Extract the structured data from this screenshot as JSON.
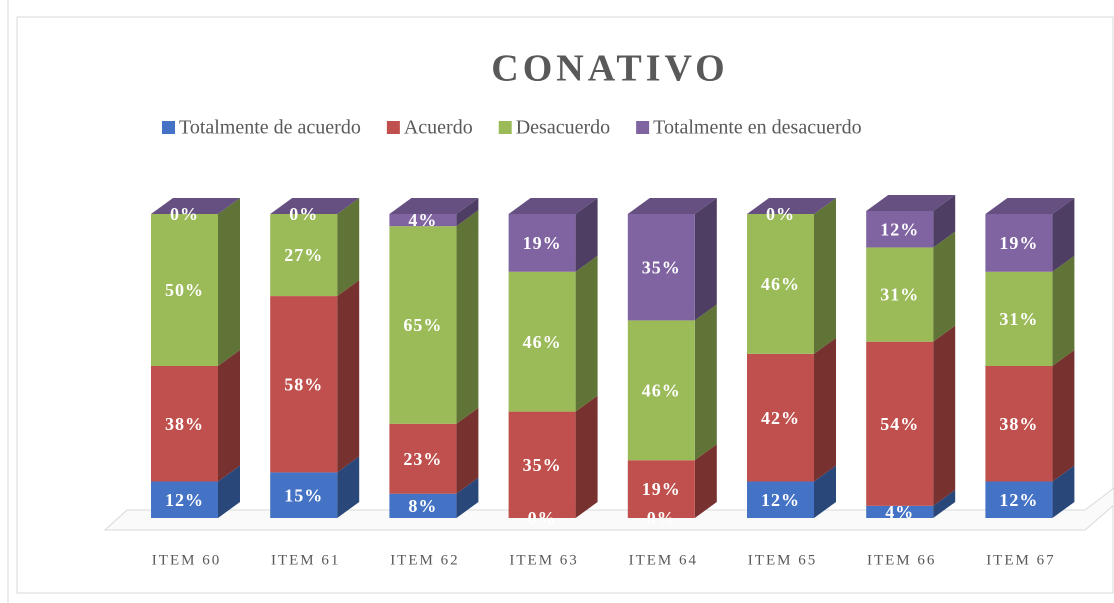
{
  "chart_data": {
    "type": "bar3d_stacked",
    "title": "CONATIVO",
    "categories": [
      "ITEM 60",
      "ITEM 61",
      "ITEM 62",
      "ITEM 63",
      "ITEM 64",
      "ITEM 65",
      "ITEM 66",
      "ITEM 67"
    ],
    "series": [
      {
        "name": "Totalmente de acuerdo",
        "color": "#4472c4",
        "values": [
          12,
          15,
          8,
          0,
          0,
          12,
          4,
          12
        ],
        "value_labels": [
          "12%",
          "15%",
          "8%",
          "0%",
          "0%",
          "12%",
          "4%",
          "12%"
        ]
      },
      {
        "name": "Acuerdo",
        "color": "#c0504d",
        "values": [
          38,
          58,
          23,
          35,
          19,
          42,
          54,
          38
        ],
        "value_labels": [
          "38%",
          "58%",
          "23%",
          "35%",
          "19%",
          "42%",
          "54%",
          "38%"
        ]
      },
      {
        "name": "Desacuerdo",
        "color": "#9bbb59",
        "values": [
          50,
          27,
          65,
          46,
          46,
          46,
          31,
          31
        ],
        "value_labels": [
          "50%",
          "27%",
          "65%",
          "46%",
          "46%",
          "46%",
          "31%",
          "31%"
        ]
      },
      {
        "name": "Totalmente en desacuerdo",
        "color": "#8064a2",
        "values": [
          0,
          0,
          4,
          19,
          35,
          0,
          12,
          19
        ],
        "value_labels": [
          "0%",
          "0%",
          "4%",
          "19%",
          "35%",
          "0%",
          "12%",
          "19%"
        ]
      }
    ]
  }
}
